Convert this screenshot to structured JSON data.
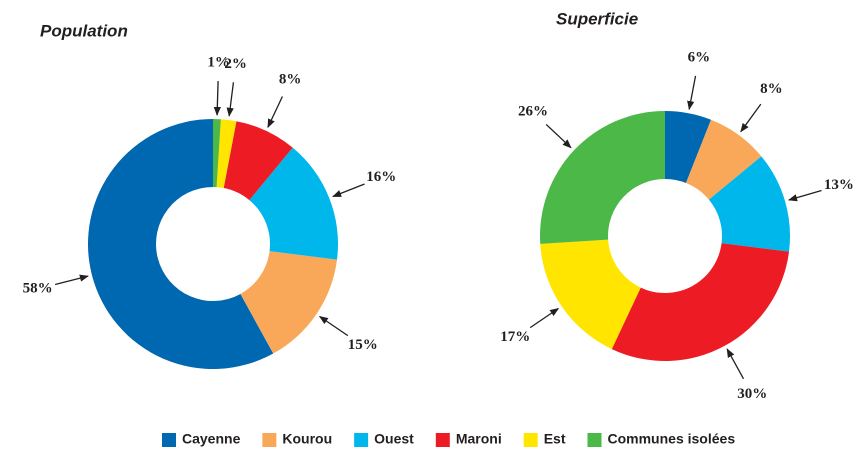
{
  "chart_data": [
    {
      "type": "pie",
      "title": "Population",
      "categories": [
        "Cayenne",
        "Kourou",
        "Ouest",
        "Maroni",
        "Est",
        "Communes isolées"
      ],
      "values": [
        58,
        15,
        16,
        8,
        2,
        1
      ],
      "value_labels": [
        "58%",
        "15%",
        "16%",
        "8%",
        "2%",
        "1%"
      ],
      "colors": [
        "#0067b1",
        "#f9a85a",
        "#00b7eb",
        "#ed1c24",
        "#ffe500",
        "#4cb848"
      ],
      "direction": "counterclockwise"
    },
    {
      "type": "pie",
      "title": "Superficie",
      "categories": [
        "Cayenne",
        "Kourou",
        "Ouest",
        "Maroni",
        "Est",
        "Communes isolées"
      ],
      "values": [
        6,
        8,
        13,
        30,
        17,
        26
      ],
      "value_labels": [
        "6%",
        "8%",
        "13%",
        "30%",
        "17%",
        "26%"
      ],
      "colors": [
        "#0067b1",
        "#f9a85a",
        "#00b7eb",
        "#ed1c24",
        "#ffe500",
        "#4cb848"
      ],
      "direction": "clockwise"
    }
  ]
}
